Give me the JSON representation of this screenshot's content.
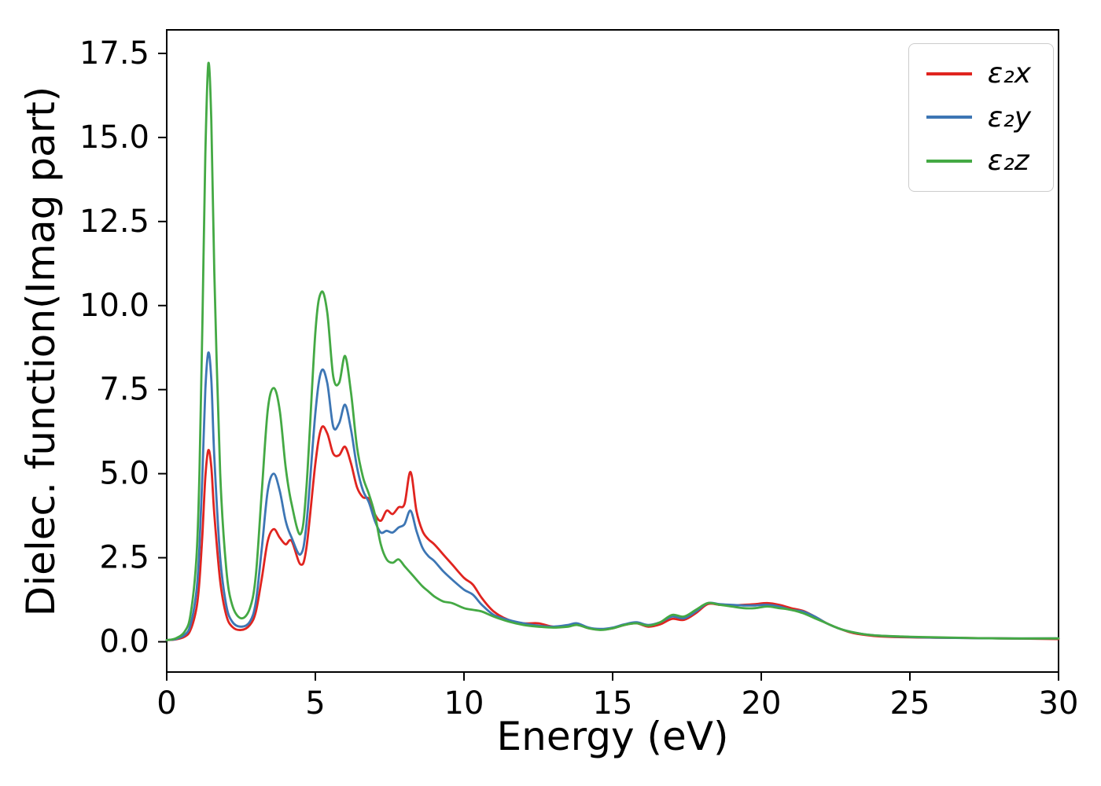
{
  "figure": {
    "background": "#ffffff"
  },
  "chart_data": {
    "type": "line",
    "title": "",
    "xlabel": "Energy (eV)",
    "ylabel": "Dielec. function(Imag part)",
    "xlim": [
      0,
      30
    ],
    "ylim": [
      -0.9,
      18.2
    ],
    "xticks": [
      0,
      5,
      10,
      15,
      20,
      25,
      30
    ],
    "yticks": [
      0.0,
      2.5,
      5.0,
      7.5,
      10.0,
      12.5,
      15.0,
      17.5
    ],
    "grid": false,
    "legend_position": "upper right",
    "x": [
      0,
      0.3,
      0.6,
      0.8,
      1.0,
      1.1,
      1.2,
      1.3,
      1.4,
      1.5,
      1.6,
      1.8,
      2.0,
      2.2,
      2.5,
      2.8,
      3.0,
      3.2,
      3.4,
      3.6,
      3.8,
      4.0,
      4.2,
      4.5,
      4.7,
      5.0,
      5.2,
      5.4,
      5.6,
      5.8,
      6.0,
      6.2,
      6.4,
      6.6,
      6.8,
      7.0,
      7.2,
      7.4,
      7.6,
      7.8,
      8.0,
      8.2,
      8.4,
      8.6,
      8.8,
      9.0,
      9.3,
      9.6,
      10.0,
      10.3,
      10.6,
      11.0,
      11.5,
      12.0,
      12.5,
      13.0,
      13.5,
      13.8,
      14.2,
      14.6,
      15.0,
      15.4,
      15.8,
      16.2,
      16.6,
      17.0,
      17.4,
      17.8,
      18.2,
      18.6,
      19.0,
      19.4,
      19.8,
      20.2,
      20.6,
      21.0,
      21.4,
      21.8,
      22.2,
      22.6,
      23.0,
      23.5,
      24.0,
      25.0,
      26.0,
      28.0,
      30.0
    ],
    "series": [
      {
        "name": "ε₂x",
        "axis": "x",
        "color": "#e0241f",
        "values": [
          0.05,
          0.07,
          0.15,
          0.35,
          1.0,
          1.8,
          3.2,
          4.9,
          5.7,
          5.2,
          3.8,
          1.8,
          0.8,
          0.45,
          0.35,
          0.5,
          0.9,
          1.9,
          3.0,
          3.35,
          3.1,
          2.9,
          3.0,
          2.3,
          2.8,
          5.3,
          6.35,
          6.2,
          5.6,
          5.55,
          5.8,
          5.3,
          4.6,
          4.3,
          4.25,
          3.8,
          3.6,
          3.9,
          3.8,
          4.0,
          4.1,
          5.05,
          3.9,
          3.3,
          3.05,
          2.9,
          2.6,
          2.3,
          1.9,
          1.7,
          1.3,
          0.9,
          0.65,
          0.55,
          0.55,
          0.45,
          0.48,
          0.52,
          0.4,
          0.36,
          0.4,
          0.5,
          0.55,
          0.45,
          0.52,
          0.68,
          0.65,
          0.85,
          1.12,
          1.1,
          1.08,
          1.1,
          1.12,
          1.15,
          1.1,
          1.0,
          0.92,
          0.75,
          0.55,
          0.4,
          0.28,
          0.2,
          0.16,
          0.13,
          0.12,
          0.1,
          0.08
        ]
      },
      {
        "name": "ε₂y",
        "axis": "y",
        "color": "#3d76b4",
        "values": [
          0.05,
          0.08,
          0.2,
          0.5,
          1.5,
          2.8,
          5.0,
          7.5,
          8.6,
          7.8,
          5.5,
          2.5,
          1.1,
          0.6,
          0.45,
          0.6,
          1.2,
          2.8,
          4.5,
          5.0,
          4.5,
          3.6,
          3.1,
          2.6,
          3.5,
          6.8,
          8.05,
          7.7,
          6.4,
          6.5,
          7.05,
          6.3,
          5.2,
          4.5,
          4.15,
          3.6,
          3.25,
          3.3,
          3.25,
          3.4,
          3.5,
          3.9,
          3.3,
          2.8,
          2.55,
          2.4,
          2.1,
          1.85,
          1.55,
          1.4,
          1.1,
          0.8,
          0.65,
          0.55,
          0.48,
          0.45,
          0.5,
          0.55,
          0.42,
          0.38,
          0.42,
          0.52,
          0.58,
          0.5,
          0.58,
          0.75,
          0.7,
          0.9,
          1.15,
          1.12,
          1.1,
          1.08,
          1.08,
          1.1,
          1.05,
          0.95,
          0.9,
          0.75,
          0.55,
          0.4,
          0.3,
          0.22,
          0.18,
          0.14,
          0.12,
          0.1,
          0.1
        ]
      },
      {
        "name": "ε₂z",
        "axis": "z",
        "color": "#44a944",
        "values": [
          0.05,
          0.1,
          0.3,
          0.8,
          2.5,
          5.0,
          9.5,
          14.5,
          17.2,
          15.5,
          11.0,
          5.0,
          2.2,
          1.1,
          0.7,
          1.0,
          2.0,
          4.5,
          6.9,
          7.55,
          6.9,
          5.2,
          4.1,
          3.2,
          4.6,
          9.2,
          10.4,
          9.8,
          7.9,
          7.7,
          8.5,
          7.4,
          5.8,
          4.9,
          4.4,
          3.8,
          2.9,
          2.45,
          2.35,
          2.45,
          2.25,
          2.05,
          1.85,
          1.65,
          1.5,
          1.35,
          1.2,
          1.15,
          1.0,
          0.95,
          0.9,
          0.75,
          0.6,
          0.5,
          0.45,
          0.42,
          0.45,
          0.5,
          0.4,
          0.35,
          0.4,
          0.5,
          0.55,
          0.48,
          0.58,
          0.8,
          0.75,
          0.95,
          1.15,
          1.1,
          1.05,
          1.0,
          1.0,
          1.05,
          1.0,
          0.95,
          0.85,
          0.7,
          0.55,
          0.4,
          0.3,
          0.22,
          0.18,
          0.15,
          0.13,
          0.1,
          0.1
        ]
      }
    ],
    "style": {
      "spine_color": "#000000",
      "tick_font_size": 40,
      "label_font_size": 50,
      "legend_font_size": 36,
      "line_width": 2.8
    }
  }
}
